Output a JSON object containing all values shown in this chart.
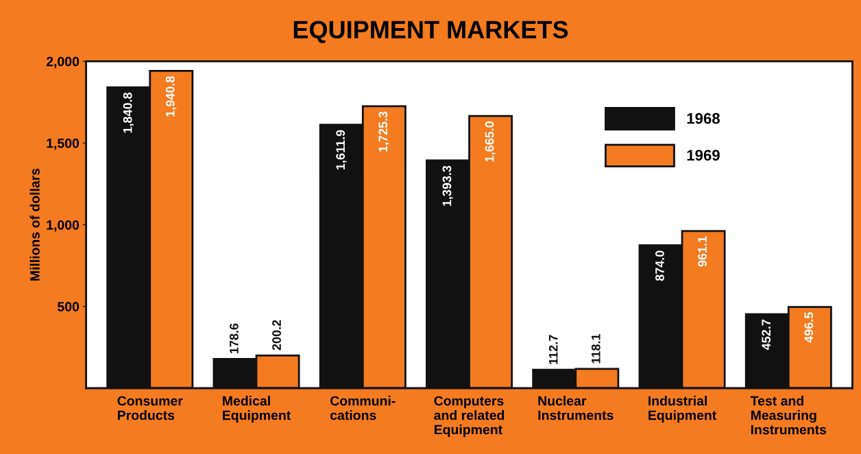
{
  "chart_data": {
    "type": "bar",
    "title": "EQUIPMENT MARKETS",
    "ylabel": "Millions of dollars",
    "categories": [
      "Consumer\nProducts",
      "Medical\nEquipment",
      "Communi-\ncations",
      "Computers\nand related\nEquipment",
      "Nuclear\nInstruments",
      "Industrial\nEquipment",
      "Test and\nMeasuring\nInstruments"
    ],
    "series": [
      {
        "name": "1968",
        "color": "#111111",
        "values": [
          1840.8,
          178.6,
          1611.9,
          1393.3,
          112.7,
          874.0,
          452.7
        ],
        "value_labels": [
          "1,840.8",
          "178.6",
          "1,611.9",
          "1,393.3",
          "112.7",
          "874.0",
          "452.7"
        ]
      },
      {
        "name": "1969",
        "color": "#f47b20",
        "values": [
          1940.8,
          200.2,
          1725.3,
          1665.0,
          118.1,
          961.1,
          496.5
        ],
        "value_labels": [
          "1,940.8",
          "200.2",
          "1,725.3",
          "1,665.0",
          "118.1",
          "961.1",
          "496.5"
        ]
      }
    ],
    "ylim": [
      0,
      2000
    ],
    "yticks": [
      {
        "value": 500,
        "label": "500"
      },
      {
        "value": 1000,
        "label": "1,000"
      },
      {
        "value": 1500,
        "label": "1,500"
      },
      {
        "value": 2000,
        "label": "2,000"
      }
    ],
    "grid": false,
    "legend": "top right"
  }
}
